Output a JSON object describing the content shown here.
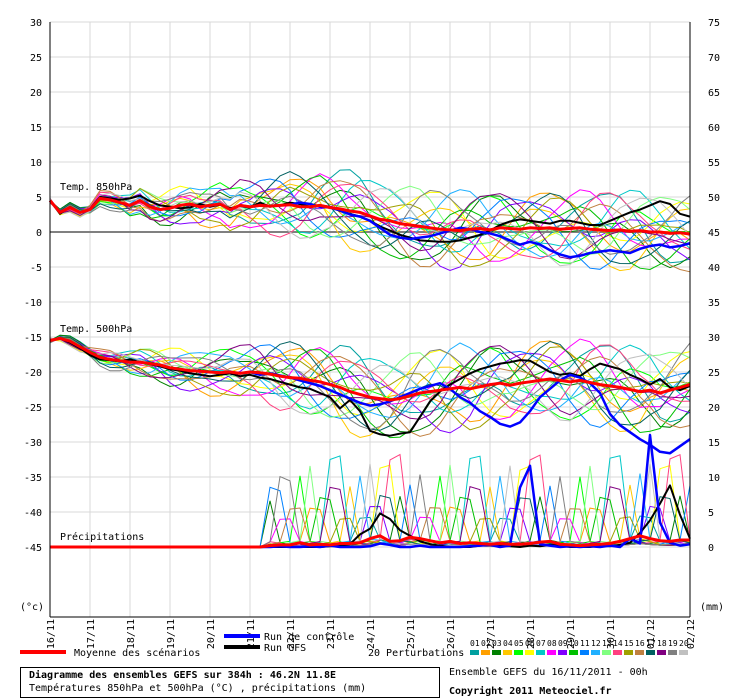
{
  "chart_data": {
    "type": "line",
    "title": "Diagramme des ensembles GEFS sur 384h : 46.2N 11.8E",
    "subtitle": "Températures 850hPa et 500hPa (°C) , précipitations (mm)",
    "left_axis": {
      "label": "(°c)",
      "ylim": [
        -55,
        30
      ],
      "ticks": [
        30,
        25,
        20,
        15,
        10,
        5,
        0,
        -5,
        -10,
        -15,
        -20,
        -25,
        -30,
        -35,
        -40,
        -45
      ]
    },
    "right_axis": {
      "label": "(mm)",
      "ylim": [
        -10,
        75
      ],
      "ticks": [
        75,
        70,
        65,
        60,
        55,
        50,
        45,
        40,
        35,
        30,
        25,
        20,
        15,
        10,
        5,
        0
      ]
    },
    "x_labels": [
      "16/11",
      "17/11",
      "18/11",
      "19/11",
      "20/11",
      "21/11",
      "22/11",
      "23/11",
      "24/11",
      "25/11",
      "26/11",
      "27/11",
      "28/11",
      "29/11",
      "30/11",
      "01/12",
      "02/12"
    ],
    "grid": true,
    "panels": {
      "t850": "Temp. 850hPa",
      "t500": "Temp. 500hPa",
      "precip": "Précipitations"
    },
    "legend": {
      "mean": "Moyenne des scénarios",
      "control": "Run de contrôle",
      "gfs": "Run GFS",
      "perturbations": "20 Perturbations",
      "member_codes": [
        "01",
        "02",
        "03",
        "04",
        "05",
        "06",
        "07",
        "08",
        "09",
        "10",
        "11",
        "12",
        "13",
        "14",
        "15",
        "16",
        "17",
        "18",
        "19",
        "20"
      ],
      "member_colors": [
        "#00a0a0",
        "#ffa000",
        "#008000",
        "#ffc800",
        "#00ff00",
        "#ffff00",
        "#00c8c8",
        "#ff00ff",
        "#8000ff",
        "#00c000",
        "#0080ff",
        "#20b0ff",
        "#80ff80",
        "#ff4080",
        "#a0a000",
        "#c08040",
        "#006060",
        "#800080",
        "#808080",
        "#c0c0c0"
      ]
    },
    "colors": {
      "mean": "#ff0000",
      "control": "#0000ff",
      "gfs": "#000000"
    },
    "series": [
      {
        "name": "Moyenne des scénarios",
        "panel": "t850",
        "values": [
          4.5,
          2.8,
          3.5,
          2.8,
          3.2,
          4.8,
          4.6,
          4.2,
          3.8,
          4.5,
          3.6,
          3.2,
          3.4,
          3.8,
          4.0,
          3.6,
          3.8,
          4.0,
          3.2,
          3.8,
          3.6,
          3.8,
          3.7,
          3.8,
          3.9,
          3.6,
          3.6,
          3.8,
          3.5,
          3.3,
          3.0,
          2.8,
          2.3,
          1.8,
          1.6,
          1.2,
          1.0,
          0.8,
          0.6,
          0.4,
          0.3,
          0.2,
          0.4,
          0.5,
          0.3,
          0.6,
          0.5,
          0.4,
          0.6,
          0.5,
          0.6,
          0.4,
          0.5,
          0.6,
          0.4,
          0.3,
          0.2,
          0.3,
          0.1,
          0.2,
          0.0,
          0.0,
          -0.2,
          -0.1,
          -0.3
        ]
      },
      {
        "name": "Run de contrôle",
        "panel": "t850",
        "values": [
          4.5,
          2.8,
          3.5,
          2.8,
          3.2,
          4.8,
          4.6,
          4.2,
          3.8,
          4.5,
          3.6,
          3.2,
          3.4,
          3.8,
          4.0,
          3.6,
          3.8,
          4.0,
          3.2,
          3.8,
          3.6,
          3.8,
          3.7,
          3.8,
          3.9,
          4.2,
          4.0,
          3.6,
          3.5,
          3.1,
          2.5,
          2.2,
          1.6,
          0.6,
          -0.4,
          -0.8,
          -1.0,
          -0.8,
          -0.6,
          -0.2,
          0.2,
          0.6,
          0.4,
          0.0,
          -0.2,
          -0.6,
          -1.2,
          -1.8,
          -1.4,
          -1.8,
          -2.6,
          -3.2,
          -3.6,
          -3.4,
          -3.0,
          -2.8,
          -2.6,
          -2.8,
          -3.0,
          -2.4,
          -2.0,
          -1.8,
          -2.2,
          -2.0,
          -1.6
        ]
      },
      {
        "name": "Run GFS",
        "panel": "t850",
        "values": [
          4.5,
          2.6,
          3.6,
          2.8,
          3.3,
          5.0,
          4.8,
          4.6,
          4.8,
          5.2,
          4.4,
          3.8,
          3.6,
          3.4,
          3.5,
          4.0,
          3.6,
          3.9,
          3.4,
          3.7,
          3.5,
          4.2,
          3.6,
          3.8,
          4.2,
          4.0,
          3.6,
          3.8,
          3.6,
          3.0,
          2.6,
          2.2,
          1.6,
          0.8,
          0.2,
          -0.4,
          -0.8,
          -1.2,
          -1.3,
          -1.4,
          -1.4,
          -1.2,
          -0.8,
          -0.4,
          0.2,
          1.0,
          1.5,
          1.8,
          1.6,
          1.4,
          1.2,
          1.6,
          1.6,
          1.3,
          1.0,
          1.0,
          1.6,
          2.2,
          2.8,
          3.2,
          3.8,
          4.4,
          4.0,
          2.6,
          2.2
        ]
      },
      {
        "name": "Moyenne des scénarios",
        "panel": "t500",
        "values": [
          -15.5,
          -15.2,
          -15.6,
          -16.4,
          -17.2,
          -17.9,
          -18.2,
          -18.4,
          -18.6,
          -18.6,
          -18.8,
          -19.0,
          -19.4,
          -19.6,
          -19.8,
          -19.9,
          -20.0,
          -20.1,
          -20.0,
          -20.2,
          -20.0,
          -20.1,
          -20.3,
          -20.6,
          -20.8,
          -20.9,
          -21.2,
          -21.4,
          -21.8,
          -22.2,
          -22.8,
          -23.2,
          -23.6,
          -23.8,
          -24.0,
          -23.8,
          -23.4,
          -23.0,
          -22.8,
          -22.6,
          -22.4,
          -22.2,
          -22.4,
          -22.1,
          -21.8,
          -21.6,
          -21.9,
          -21.6,
          -21.4,
          -21.2,
          -21.0,
          -21.2,
          -21.4,
          -21.2,
          -21.5,
          -21.8,
          -22.0,
          -22.2,
          -22.5,
          -22.8,
          -22.6,
          -23.0,
          -22.6,
          -22.2,
          -21.8
        ]
      },
      {
        "name": "Run de contrôle",
        "panel": "t500",
        "values": [
          -15.5,
          -15.2,
          -15.6,
          -16.4,
          -17.2,
          -17.9,
          -18.2,
          -18.4,
          -18.6,
          -18.6,
          -18.8,
          -19.0,
          -19.4,
          -19.6,
          -19.8,
          -19.9,
          -20.0,
          -20.1,
          -20.0,
          -20.2,
          -20.0,
          -20.4,
          -20.2,
          -20.5,
          -20.8,
          -21.2,
          -21.6,
          -22.0,
          -22.6,
          -23.2,
          -23.8,
          -24.4,
          -24.8,
          -24.6,
          -24.2,
          -23.6,
          -23.0,
          -22.4,
          -22.0,
          -21.6,
          -22.4,
          -23.6,
          -24.4,
          -25.6,
          -26.4,
          -27.4,
          -27.8,
          -27.2,
          -25.6,
          -23.6,
          -22.4,
          -21.2,
          -20.4,
          -20.8,
          -21.6,
          -23.0,
          -26.0,
          -27.6,
          -28.6,
          -29.6,
          -30.4,
          -31.4,
          -31.6,
          -30.6,
          -29.6
        ]
      },
      {
        "name": "Run GFS",
        "panel": "t500",
        "values": [
          -15.5,
          -15.2,
          -15.8,
          -16.6,
          -17.6,
          -18.2,
          -18.3,
          -18.5,
          -18.2,
          -18.6,
          -18.9,
          -19.2,
          -19.6,
          -19.8,
          -20.2,
          -20.4,
          -20.6,
          -20.4,
          -20.2,
          -20.6,
          -20.4,
          -20.8,
          -21.0,
          -21.4,
          -21.8,
          -22.2,
          -22.4,
          -23.0,
          -23.6,
          -25.2,
          -24.0,
          -25.6,
          -28.4,
          -28.9,
          -29.1,
          -28.8,
          -28.6,
          -26.4,
          -24.2,
          -22.8,
          -21.8,
          -21.0,
          -20.2,
          -19.6,
          -19.2,
          -18.8,
          -18.6,
          -18.3,
          -18.4,
          -19.2,
          -20.0,
          -20.4,
          -20.2,
          -20.6,
          -19.6,
          -18.8,
          -19.2,
          -19.6,
          -20.4,
          -21.0,
          -21.8,
          -21.0,
          -22.2,
          -22.6,
          -22.0
        ]
      },
      {
        "name": "Moyenne des scénarios",
        "panel": "precip",
        "values": [
          0,
          0,
          0,
          0,
          0,
          0,
          0,
          0,
          0,
          0,
          0,
          0,
          0,
          0,
          0,
          0,
          0,
          0,
          0,
          0,
          0,
          0,
          0.2,
          0.3,
          0.3,
          0.6,
          0.3,
          0.4,
          0.3,
          0.5,
          0.5,
          0.6,
          1.2,
          1.6,
          0.8,
          0.9,
          1.4,
          1.2,
          0.9,
          0.6,
          0.8,
          0.5,
          0.6,
          0.5,
          0.4,
          0.5,
          0.4,
          0.4,
          0.5,
          0.7,
          0.8,
          0.4,
          0.3,
          0.2,
          0.3,
          0.4,
          0.5,
          0.8,
          1.2,
          1.6,
          1.2,
          0.9,
          0.8,
          1.0,
          1.0
        ]
      },
      {
        "name": "Run de contrôle",
        "panel": "precip",
        "values": [
          0,
          0,
          0,
          0,
          0,
          0,
          0,
          0,
          0,
          0,
          0,
          0,
          0,
          0,
          0,
          0,
          0,
          0,
          0,
          0,
          0,
          0,
          0,
          0.1,
          0,
          0,
          0.1,
          0,
          0.2,
          0,
          0,
          0,
          0.1,
          0.5,
          0.3,
          0,
          0,
          0.2,
          0,
          0,
          0,
          0,
          0.1,
          0.2,
          0.3,
          0,
          0.2,
          8.5,
          11.6,
          0.4,
          0.2,
          0,
          0.1,
          0,
          0.1,
          0,
          0.2,
          0,
          1.2,
          0.5,
          16.0,
          3.5,
          0.6,
          0.2,
          0.4
        ]
      },
      {
        "name": "Run GFS",
        "panel": "precip",
        "values": [
          0,
          0,
          0,
          0,
          0,
          0,
          0,
          0,
          0,
          0,
          0,
          0,
          0,
          0,
          0,
          0,
          0,
          0,
          0,
          0,
          0,
          0,
          0,
          0,
          0,
          0,
          0,
          0,
          0.1,
          0.2,
          0.4,
          1.8,
          2.6,
          4.8,
          4.0,
          2.4,
          1.6,
          0.8,
          0.4,
          0.2,
          0,
          0,
          0,
          0.2,
          0.3,
          0.2,
          0.1,
          0,
          0.2,
          0.1,
          0.3,
          0.2,
          0,
          0,
          0,
          0.2,
          0.1,
          0.3,
          0.6,
          2.0,
          3.8,
          6.2,
          8.8,
          4.6,
          1.2
        ]
      }
    ]
  },
  "footer": {
    "info_line1": "Ensemble GEFS du 16/11/2011 - 00h",
    "copyright": "Copyright 2011 Meteociel.fr"
  }
}
